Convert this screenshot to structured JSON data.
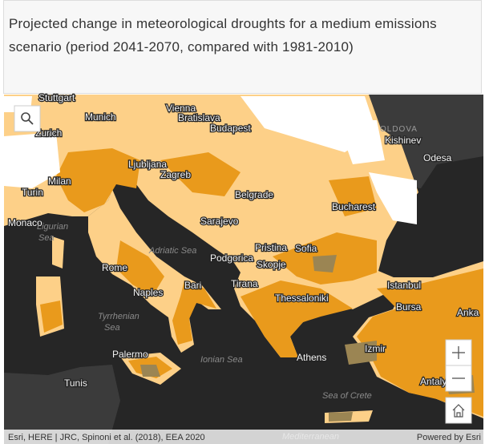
{
  "header": {
    "title": "Projected change in meteorological droughts for a medium emissions scenario (period 2041-2070, compared with 1981-2010)"
  },
  "map": {
    "labels": [
      {
        "text": "Stuttgart",
        "kind": "city"
      },
      {
        "text": "Munich",
        "kind": "city"
      },
      {
        "text": "Vienna",
        "kind": "city"
      },
      {
        "text": "Bratislava",
        "kind": "city"
      },
      {
        "text": "Budapest",
        "kind": "city"
      },
      {
        "text": "Zurich",
        "kind": "city"
      },
      {
        "text": "OLDOVA",
        "kind": "country"
      },
      {
        "text": "Kishinev",
        "kind": "city"
      },
      {
        "text": "Odesa",
        "kind": "city"
      },
      {
        "text": "Ljubljana",
        "kind": "city"
      },
      {
        "text": "Zagreb",
        "kind": "city"
      },
      {
        "text": "Milan",
        "kind": "city"
      },
      {
        "text": "Turin",
        "kind": "city"
      },
      {
        "text": "Belgrade",
        "kind": "city"
      },
      {
        "text": "Bucharest",
        "kind": "city"
      },
      {
        "text": "Monaco",
        "kind": "city"
      },
      {
        "text": "Ligurian",
        "kind": "sea"
      },
      {
        "text": "Sea",
        "kind": "sea"
      },
      {
        "text": "Sarajevo",
        "kind": "city"
      },
      {
        "text": "Adriatic Sea",
        "kind": "sea"
      },
      {
        "text": "Pristina",
        "kind": "city"
      },
      {
        "text": "Sofia",
        "kind": "city"
      },
      {
        "text": "Podgorica",
        "kind": "city"
      },
      {
        "text": "Skopje",
        "kind": "city"
      },
      {
        "text": "Rome",
        "kind": "city"
      },
      {
        "text": "Bari",
        "kind": "city"
      },
      {
        "text": "Tirana",
        "kind": "city"
      },
      {
        "text": "Istanbul",
        "kind": "city"
      },
      {
        "text": "Naples",
        "kind": "city"
      },
      {
        "text": "Thessaloniki",
        "kind": "city"
      },
      {
        "text": "Bursa",
        "kind": "city"
      },
      {
        "text": "Anka",
        "kind": "city"
      },
      {
        "text": "Tyrrhenian",
        "kind": "sea"
      },
      {
        "text": "Sea",
        "kind": "sea"
      },
      {
        "text": "Ionian Sea",
        "kind": "sea"
      },
      {
        "text": "Athens",
        "kind": "city"
      },
      {
        "text": "Izmir",
        "kind": "city"
      },
      {
        "text": "Palermo",
        "kind": "city"
      },
      {
        "text": "Tunis",
        "kind": "city"
      },
      {
        "text": "Antaly",
        "kind": "city"
      },
      {
        "text": "Sea of Crete",
        "kind": "sea"
      },
      {
        "text": "Mediterranean",
        "kind": "sea"
      }
    ],
    "attribution": "Esri, HERE | JRC, Spinoni et al. (2018), EEA 2020",
    "powered_by": "Powered by Esri"
  }
}
